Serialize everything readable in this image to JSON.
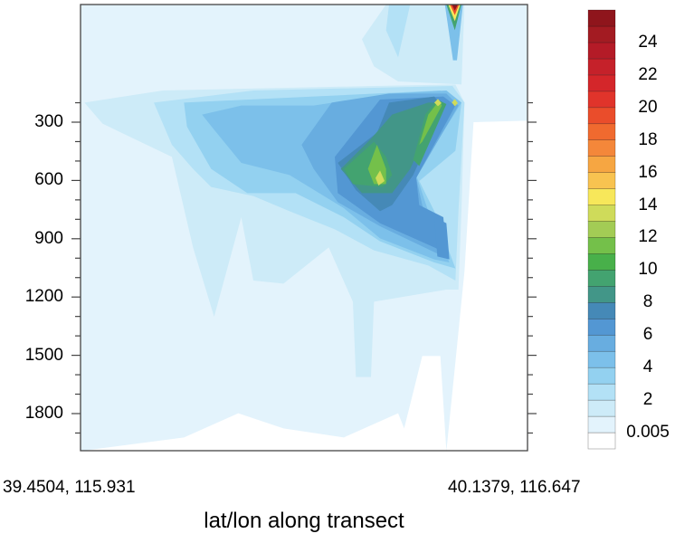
{
  "chart_data": {
    "type": "heatmap",
    "subtype": "filled-contour cross-section",
    "xlabel": "lat/lon along transect",
    "x_tick_labels": [
      "39.4504, 115.931",
      "40.1379, 116.647"
    ],
    "ylabel": "",
    "y_ticks": [
      300,
      600,
      900,
      1200,
      1500,
      1800
    ],
    "y_tick_labels": [
      "300",
      "600",
      "900",
      "1200",
      "1500",
      "1800"
    ],
    "y_minor_step": 100,
    "ylim": [
      -305,
      1990
    ],
    "y_reversed": true,
    "grid": false,
    "colorbar": {
      "placement": "right",
      "levels": [
        0.005,
        1,
        2,
        3,
        4,
        5,
        6,
        7,
        8,
        9,
        10,
        11,
        12,
        13,
        14,
        15,
        16,
        17,
        18,
        19,
        20,
        21,
        22,
        23,
        24,
        25
      ],
      "labels": [
        "0.005",
        "2",
        "4",
        "6",
        "8",
        "10",
        "12",
        "14",
        "16",
        "18",
        "20",
        "22",
        "24"
      ],
      "colors": [
        "#ffffff",
        "#e3f3fc",
        "#cdebf8",
        "#b3e1f6",
        "#93d1f0",
        "#7cc0ea",
        "#68ade0",
        "#5397d3",
        "#4589b7",
        "#429688",
        "#43a370",
        "#48b04a",
        "#74c04a",
        "#a3cc55",
        "#cfdb5a",
        "#f7e75a",
        "#f8c350",
        "#f6a642",
        "#f4873a",
        "#f06a2f",
        "#ea4d2b",
        "#e0342b",
        "#d4262a",
        "#c5212a",
        "#b41b27",
        "#a31b22",
        "#8f151c"
      ]
    },
    "features": {
      "field_max_approx": 25,
      "main_maximum_approx": 14,
      "main_maximum_y_range": [
        300,
        700
      ]
    }
  }
}
